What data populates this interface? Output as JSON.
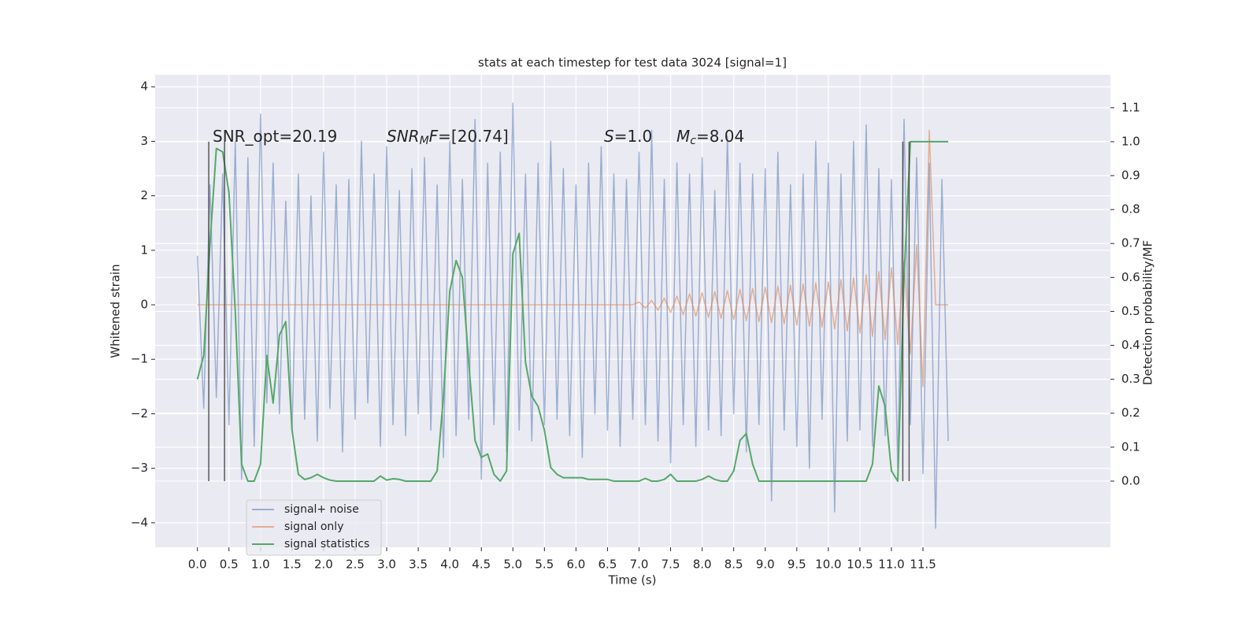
{
  "chart_data": {
    "type": "line",
    "title": "stats at each timestep for test data 3024 [signal=1]",
    "xlabel": "Time (s)",
    "ylabel": "Whitened strain",
    "y2label": "Detection probability/MF",
    "annotations": [
      [
        {
          "text": "SNR_opt=20.19"
        }
      ],
      [
        {
          "text": "SNR",
          "italic": true
        },
        {
          "text": "M",
          "italic": true,
          "sub": true
        },
        {
          "text": "F",
          "italic": true
        },
        {
          "text": "=[20.74]"
        }
      ],
      [
        {
          "text": "S",
          "italic": true
        },
        {
          "text": "=1.0"
        }
      ],
      [
        {
          "text": "M",
          "italic": true
        },
        {
          "text": "c",
          "italic": true,
          "sub": true
        },
        {
          "text": "=8.04"
        }
      ]
    ],
    "x": [
      0.0,
      0.1,
      0.2,
      0.3,
      0.4,
      0.5,
      0.6,
      0.7,
      0.8,
      0.9,
      1.0,
      1.1,
      1.2,
      1.3,
      1.4,
      1.5,
      1.6,
      1.7,
      1.8,
      1.9,
      2.0,
      2.1,
      2.2,
      2.3,
      2.4,
      2.5,
      2.6,
      2.7,
      2.8,
      2.9,
      3.0,
      3.1,
      3.2,
      3.3,
      3.4,
      3.5,
      3.6,
      3.7,
      3.8,
      3.9,
      4.0,
      4.1,
      4.2,
      4.3,
      4.4,
      4.5,
      4.6,
      4.7,
      4.8,
      4.9,
      5.0,
      5.1,
      5.2,
      5.3,
      5.4,
      5.5,
      5.6,
      5.7,
      5.8,
      5.9,
      6.0,
      6.1,
      6.2,
      6.3,
      6.4,
      6.5,
      6.6,
      6.7,
      6.8,
      6.9,
      7.0,
      7.1,
      7.2,
      7.3,
      7.4,
      7.5,
      7.6,
      7.7,
      7.8,
      7.9,
      8.0,
      8.1,
      8.2,
      8.3,
      8.4,
      8.5,
      8.6,
      8.7,
      8.8,
      8.9,
      9.0,
      9.1,
      9.2,
      9.3,
      9.4,
      9.5,
      9.6,
      9.7,
      9.8,
      9.9,
      10.0,
      10.1,
      10.2,
      10.3,
      10.4,
      10.5,
      10.6,
      10.7,
      10.8,
      10.9,
      11.0,
      11.1,
      11.2,
      11.3,
      11.4,
      11.5,
      11.6,
      11.7,
      11.8,
      11.9
    ],
    "series": [
      {
        "name": "signal+ noise",
        "color": "#4c72b0",
        "opacity": 0.5,
        "values": [
          0.9,
          -1.9,
          2.2,
          -1.7,
          2.4,
          -2.2,
          3.0,
          -3.2,
          2.7,
          -2.6,
          3.5,
          -1.8,
          2.6,
          -2.0,
          1.9,
          -2.3,
          2.4,
          -2.1,
          2.0,
          -2.5,
          2.8,
          -1.9,
          2.2,
          -2.7,
          2.3,
          -2.1,
          3.0,
          -1.8,
          2.4,
          -2.6,
          2.9,
          -2.2,
          2.1,
          -2.4,
          2.5,
          -2.0,
          2.7,
          -2.3,
          2.2,
          -2.8,
          3.0,
          -2.4,
          2.3,
          -2.1,
          3.4,
          -3.2,
          2.6,
          -2.2,
          2.8,
          -2.7,
          3.7,
          -2.3,
          2.4,
          -2.5,
          2.6,
          -2.2,
          3.0,
          -2.1,
          2.5,
          -2.4,
          2.2,
          -2.8,
          2.6,
          -2.0,
          2.9,
          -2.3,
          2.4,
          -2.6,
          2.3,
          -2.1,
          2.8,
          -2.2,
          3.2,
          -2.5,
          2.3,
          -2.9,
          2.6,
          -2.2,
          2.4,
          -2.6,
          2.7,
          -2.3,
          2.1,
          -2.4,
          3.1,
          -2.0,
          2.6,
          -2.7,
          2.4,
          -2.2,
          2.5,
          -3.6,
          2.8,
          -2.3,
          2.2,
          -2.6,
          2.4,
          -3.0,
          3.0,
          -2.1,
          2.6,
          -3.8,
          2.4,
          -2.5,
          3.0,
          -2.3,
          3.3,
          -2.6,
          2.5,
          -2.4,
          2.3,
          -3.0,
          3.4,
          -2.2,
          2.7,
          -3.1,
          2.6,
          -4.1,
          2.3,
          -2.5
        ]
      },
      {
        "name": "signal only",
        "color": "#dd8452",
        "opacity": 0.6,
        "values": [
          0,
          0,
          0,
          0,
          0,
          0,
          0,
          0,
          0,
          0,
          0,
          0,
          0,
          0,
          0,
          0,
          0,
          0,
          0,
          0,
          0,
          0,
          0,
          0,
          0,
          0,
          0,
          0,
          0,
          0,
          0,
          0,
          0,
          0,
          0,
          0,
          0,
          0,
          0,
          0,
          0,
          0,
          0,
          0,
          0,
          0,
          0,
          0,
          0,
          0,
          0,
          0,
          0,
          0,
          0,
          0,
          0,
          0,
          0,
          0,
          0,
          0,
          0,
          0,
          0,
          0,
          0,
          0,
          0,
          0,
          0.05,
          -0.06,
          0.08,
          -0.1,
          0.12,
          -0.14,
          0.16,
          -0.18,
          0.2,
          -0.21,
          0.22,
          -0.23,
          0.24,
          -0.25,
          0.26,
          -0.27,
          0.28,
          -0.29,
          0.3,
          -0.31,
          0.32,
          -0.33,
          0.34,
          -0.35,
          0.36,
          -0.37,
          0.38,
          -0.39,
          0.4,
          -0.41,
          0.42,
          -0.44,
          0.46,
          -0.48,
          0.5,
          -0.52,
          0.55,
          -0.58,
          0.61,
          -0.64,
          0.68,
          -0.73,
          0.8,
          -0.9,
          1.1,
          -1.5,
          3.2,
          0,
          0,
          0
        ]
      },
      {
        "name": "signal statistics",
        "color": "#55a868",
        "opacity": 1,
        "axis": "y2",
        "values": [
          0.3,
          0.37,
          0.7,
          0.98,
          0.97,
          0.85,
          0.5,
          0.05,
          0,
          0,
          0.05,
          0.37,
          0.23,
          0.43,
          0.47,
          0.15,
          0.02,
          0.005,
          0.01,
          0.02,
          0.01,
          0.003,
          0,
          0,
          0,
          0,
          0,
          0,
          0,
          0.015,
          0.003,
          0.007,
          0.005,
          0,
          0,
          0,
          0,
          0,
          0.03,
          0.25,
          0.56,
          0.65,
          0.6,
          0.35,
          0.12,
          0.07,
          0.08,
          0.02,
          0,
          0.03,
          0.67,
          0.73,
          0.35,
          0.25,
          0.22,
          0.15,
          0.04,
          0.02,
          0.01,
          0.01,
          0.01,
          0.01,
          0.005,
          0.005,
          0.005,
          0.005,
          0,
          0,
          0,
          0,
          0,
          0.008,
          0,
          0,
          0.005,
          0.02,
          0,
          0,
          0,
          0,
          0.005,
          0.015,
          0.005,
          0,
          0,
          0.03,
          0.12,
          0.14,
          0.05,
          0,
          0,
          0,
          0,
          0,
          0,
          0,
          0,
          0,
          0,
          0,
          0,
          0,
          0,
          0,
          0,
          0,
          0,
          0.05,
          0.28,
          0.22,
          0.03,
          0,
          0.6,
          1.0,
          1.0,
          1.0,
          1.0,
          1.0,
          1.0,
          1.0
        ]
      }
    ],
    "vlines": {
      "x": [
        0.18,
        0.43,
        11.18,
        11.28
      ],
      "ymin": 0,
      "ymax": 1,
      "axis": "y2",
      "color": "#333333"
    },
    "xlim": [
      -0.67,
      14.47
    ],
    "xticks": [
      {
        "value": 0,
        "label": "0.0"
      },
      {
        "value": 0.5,
        "label": "0.5"
      },
      {
        "value": 1,
        "label": "1.0"
      },
      {
        "value": 1.5,
        "label": "1.5"
      },
      {
        "value": 2,
        "label": "2.0"
      },
      {
        "value": 2.5,
        "label": "2.5"
      },
      {
        "value": 3,
        "label": "3.0"
      },
      {
        "value": 3.5,
        "label": "3.5"
      },
      {
        "value": 4,
        "label": "4.0"
      },
      {
        "value": 4.5,
        "label": "4.5"
      },
      {
        "value": 5,
        "label": "5.0"
      },
      {
        "value": 5.5,
        "label": "5.5"
      },
      {
        "value": 6,
        "label": "6.0"
      },
      {
        "value": 6.5,
        "label": "6.5"
      },
      {
        "value": 7,
        "label": "7.0"
      },
      {
        "value": 7.5,
        "label": "7.5"
      },
      {
        "value": 8,
        "label": "8.0"
      },
      {
        "value": 8.5,
        "label": "8.5"
      },
      {
        "value": 9,
        "label": "9.0"
      },
      {
        "value": 9.5,
        "label": "9.5"
      },
      {
        "value": 10,
        "label": "10.0"
      },
      {
        "value": 10.5,
        "label": "10.5"
      },
      {
        "value": 11,
        "label": "11.0"
      },
      {
        "value": 11.5,
        "label": "11.5"
      }
    ],
    "ylim": [
      -4.45,
      4.22
    ],
    "yticks": [
      {
        "value": -4,
        "label": "−4"
      },
      {
        "value": -3,
        "label": "−3"
      },
      {
        "value": -2,
        "label": "−2"
      },
      {
        "value": -1,
        "label": "−1"
      },
      0,
      1,
      2,
      3,
      4
    ],
    "y2lim": [
      -0.195,
      1.197
    ],
    "y2ticks": [
      {
        "value": 0,
        "label": "0.0"
      },
      {
        "value": 0.1,
        "label": "0.1"
      },
      {
        "value": 0.2,
        "label": "0.2"
      },
      {
        "value": 0.3,
        "label": "0.3"
      },
      {
        "value": 0.4,
        "label": "0.4"
      },
      {
        "value": 0.5,
        "label": "0.5"
      },
      {
        "value": 0.6,
        "label": "0.6"
      },
      {
        "value": 0.7,
        "label": "0.7"
      },
      {
        "value": 0.8,
        "label": "0.8"
      },
      {
        "value": 0.9,
        "label": "0.9"
      },
      {
        "value": 1,
        "label": "1.0"
      },
      {
        "value": 1.1,
        "label": "1.1"
      }
    ],
    "grid": true,
    "legend": "lower left"
  }
}
